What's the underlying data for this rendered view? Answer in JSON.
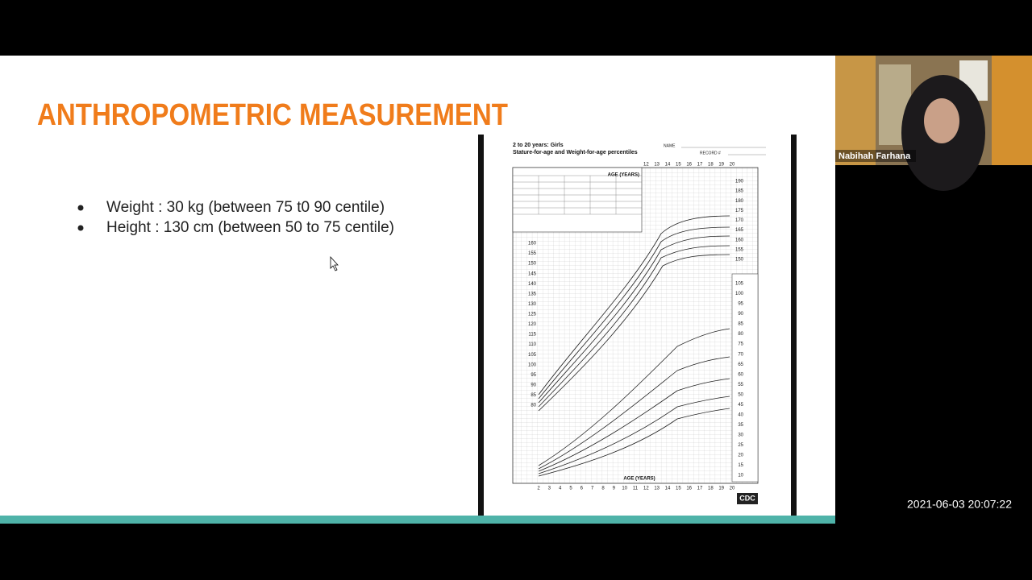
{
  "slide": {
    "title": "ANTHROPOMETRIC MEASUREMENT",
    "bullets": [
      "Weight : 30 kg (between 75 t0 90 centile)",
      "Height  : 130 cm (between 50 to 75 centile)"
    ]
  },
  "growth_chart": {
    "title": "2 to 20 years: Girls",
    "subtitle": "Stature-for-age and Weight-for-age percentiles",
    "name_label": "NAME",
    "record_label": "RECORD #",
    "age_axis_label": "AGE (YEARS)",
    "top_age_ticks": [
      12,
      13,
      14,
      15,
      16,
      17,
      18,
      19,
      20
    ],
    "age_ticks": [
      2,
      3,
      4,
      5,
      6,
      7,
      8,
      9,
      10,
      11,
      12,
      13,
      14,
      15,
      16,
      17,
      18,
      19,
      20
    ],
    "stature_ticks_cm": [
      80,
      85,
      90,
      95,
      100,
      105,
      110,
      115,
      120,
      125,
      130,
      135,
      140,
      145,
      150,
      155,
      160
    ],
    "upper_stature_ticks_cm": [
      150,
      155,
      160,
      165,
      170,
      175,
      180,
      185,
      190
    ],
    "weight_ticks_kg": [
      10,
      15,
      20,
      25,
      30,
      35,
      40,
      45,
      50,
      55,
      60,
      65,
      70,
      75,
      80,
      85,
      90,
      95,
      100,
      105
    ],
    "logo": "CDC"
  },
  "participant": {
    "name": "Nabihah Farhana"
  },
  "timestamp": "2021-06-03 20:07:22"
}
